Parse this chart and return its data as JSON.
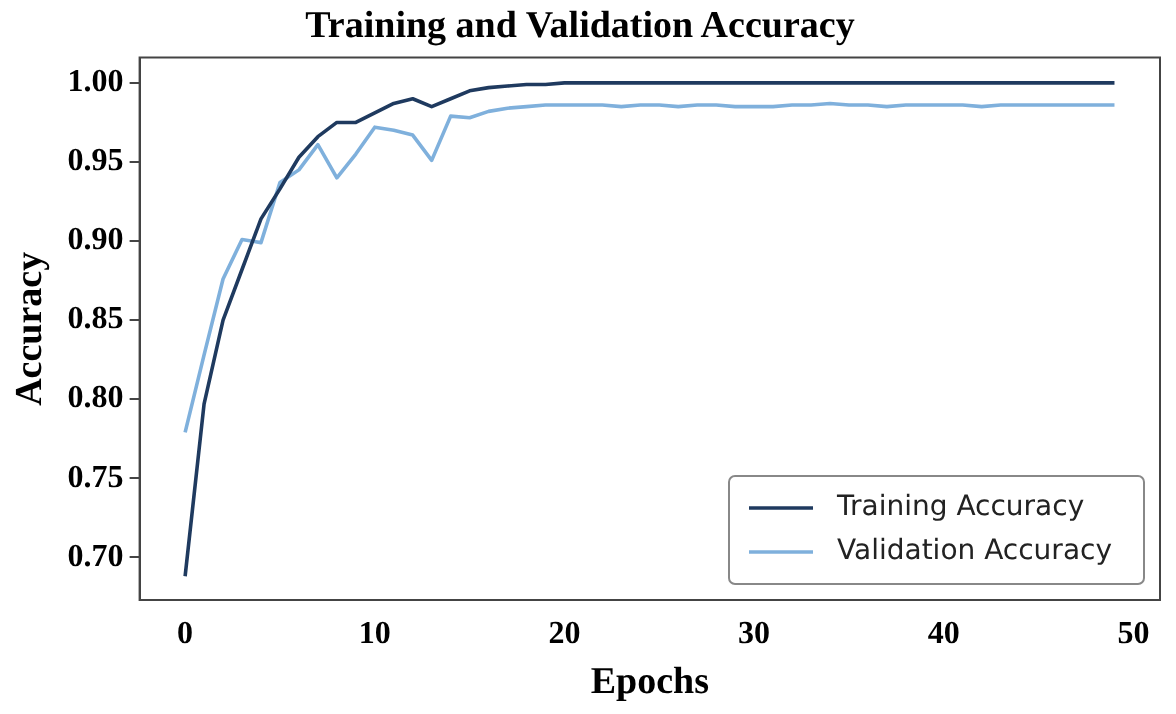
{
  "chart_data": {
    "type": "line",
    "title": "Training and Validation Accuracy",
    "xlabel": "Epochs",
    "ylabel": "Accuracy",
    "x": [
      0,
      1,
      2,
      3,
      4,
      5,
      6,
      7,
      8,
      9,
      10,
      11,
      12,
      13,
      14,
      15,
      16,
      17,
      18,
      19,
      20,
      21,
      22,
      23,
      24,
      25,
      26,
      27,
      28,
      29,
      30,
      31,
      32,
      33,
      34,
      35,
      36,
      37,
      38,
      39,
      40,
      41,
      42,
      43,
      44,
      45,
      46,
      47,
      48,
      49
    ],
    "series": [
      {
        "name": "Training Accuracy",
        "color": "#1f3a5f",
        "values": [
          0.688,
          0.797,
          0.85,
          0.882,
          0.914,
          0.933,
          0.953,
          0.966,
          0.975,
          0.975,
          0.981,
          0.987,
          0.99,
          0.985,
          0.99,
          0.995,
          0.997,
          0.998,
          0.999,
          0.999,
          1.0,
          1.0,
          1.0,
          1.0,
          1.0,
          1.0,
          1.0,
          1.0,
          1.0,
          1.0,
          1.0,
          1.0,
          1.0,
          1.0,
          1.0,
          1.0,
          1.0,
          1.0,
          1.0,
          1.0,
          1.0,
          1.0,
          1.0,
          1.0,
          1.0,
          1.0,
          1.0,
          1.0,
          1.0,
          1.0
        ]
      },
      {
        "name": "Validation Accuracy",
        "color": "#7fb0dc",
        "values": [
          0.779,
          0.828,
          0.876,
          0.901,
          0.899,
          0.937,
          0.945,
          0.961,
          0.94,
          0.955,
          0.972,
          0.97,
          0.967,
          0.951,
          0.979,
          0.978,
          0.982,
          0.984,
          0.985,
          0.986,
          0.986,
          0.986,
          0.986,
          0.985,
          0.986,
          0.986,
          0.985,
          0.986,
          0.986,
          0.985,
          0.985,
          0.985,
          0.986,
          0.986,
          0.987,
          0.986,
          0.986,
          0.985,
          0.986,
          0.986,
          0.986,
          0.986,
          0.985,
          0.986,
          0.986,
          0.986,
          0.986,
          0.986,
          0.986,
          0.986
        ]
      }
    ],
    "xlim": [
      -2.4,
      51.4
    ],
    "xticks": [
      0,
      10,
      20,
      30,
      40,
      50
    ],
    "ylim": [
      0.673,
      1.016
    ],
    "yticks": [
      {
        "value": 0.7,
        "label": "0.70"
      },
      0.75,
      {
        "value": 0.8,
        "label": "0.80"
      },
      0.85,
      {
        "value": 0.9,
        "label": "0.90"
      },
      0.95,
      {
        "value": 1.0,
        "label": "1.00"
      }
    ],
    "grid": false,
    "legend": "bottom right",
    "marker": "none",
    "line_style": "solid"
  }
}
